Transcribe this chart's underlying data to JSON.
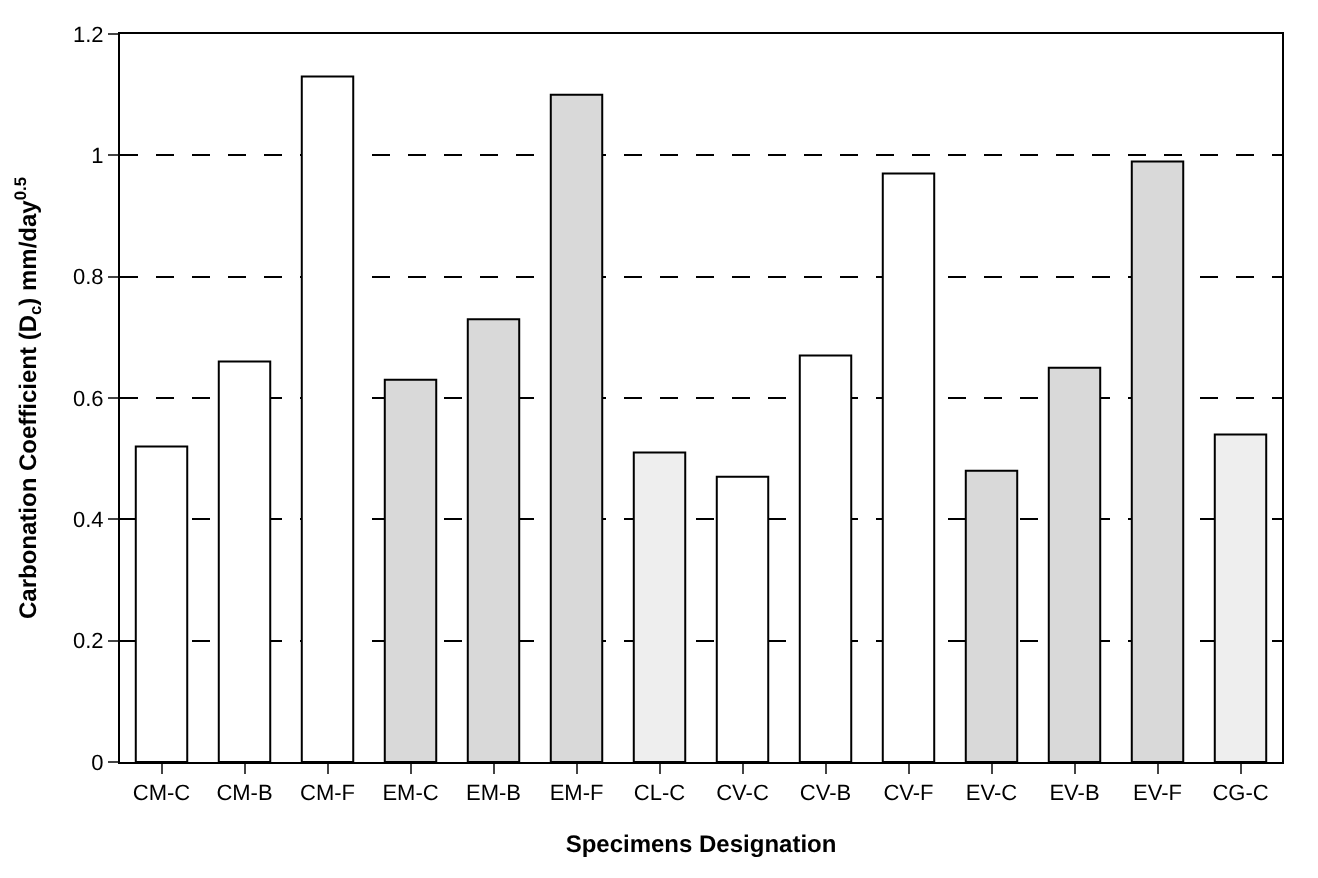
{
  "chart_data": {
    "type": "bar",
    "xlabel": "Specimens Designation",
    "ylabel": "Carbonation Coefficient (D$_{c}$) mm/day$^{0.5}$",
    "categories": [
      "CM-C",
      "CM-B",
      "CM-F",
      "EM-C",
      "EM-B",
      "EM-F",
      "CL-C",
      "CV-C",
      "CV-B",
      "CV-F",
      "EV-C",
      "EV-B",
      "EV-F",
      "CG-C"
    ],
    "values": [
      0.52,
      0.66,
      1.13,
      0.63,
      0.73,
      1.1,
      0.51,
      0.47,
      0.67,
      0.97,
      0.48,
      0.65,
      0.99,
      0.54
    ],
    "colors": [
      "#ffffff",
      "#ffffff",
      "#ffffff",
      "#d9d9d9",
      "#d9d9d9",
      "#d9d9d9",
      "#eeeeee",
      "#ffffff",
      "#ffffff",
      "#ffffff",
      "#d9d9d9",
      "#d9d9d9",
      "#d9d9d9",
      "#eeeeee"
    ],
    "ylim": [
      0,
      1.2
    ],
    "yticks": [
      0,
      0.2,
      0.4,
      0.6,
      0.8,
      1,
      1.2
    ],
    "grid": "y"
  }
}
